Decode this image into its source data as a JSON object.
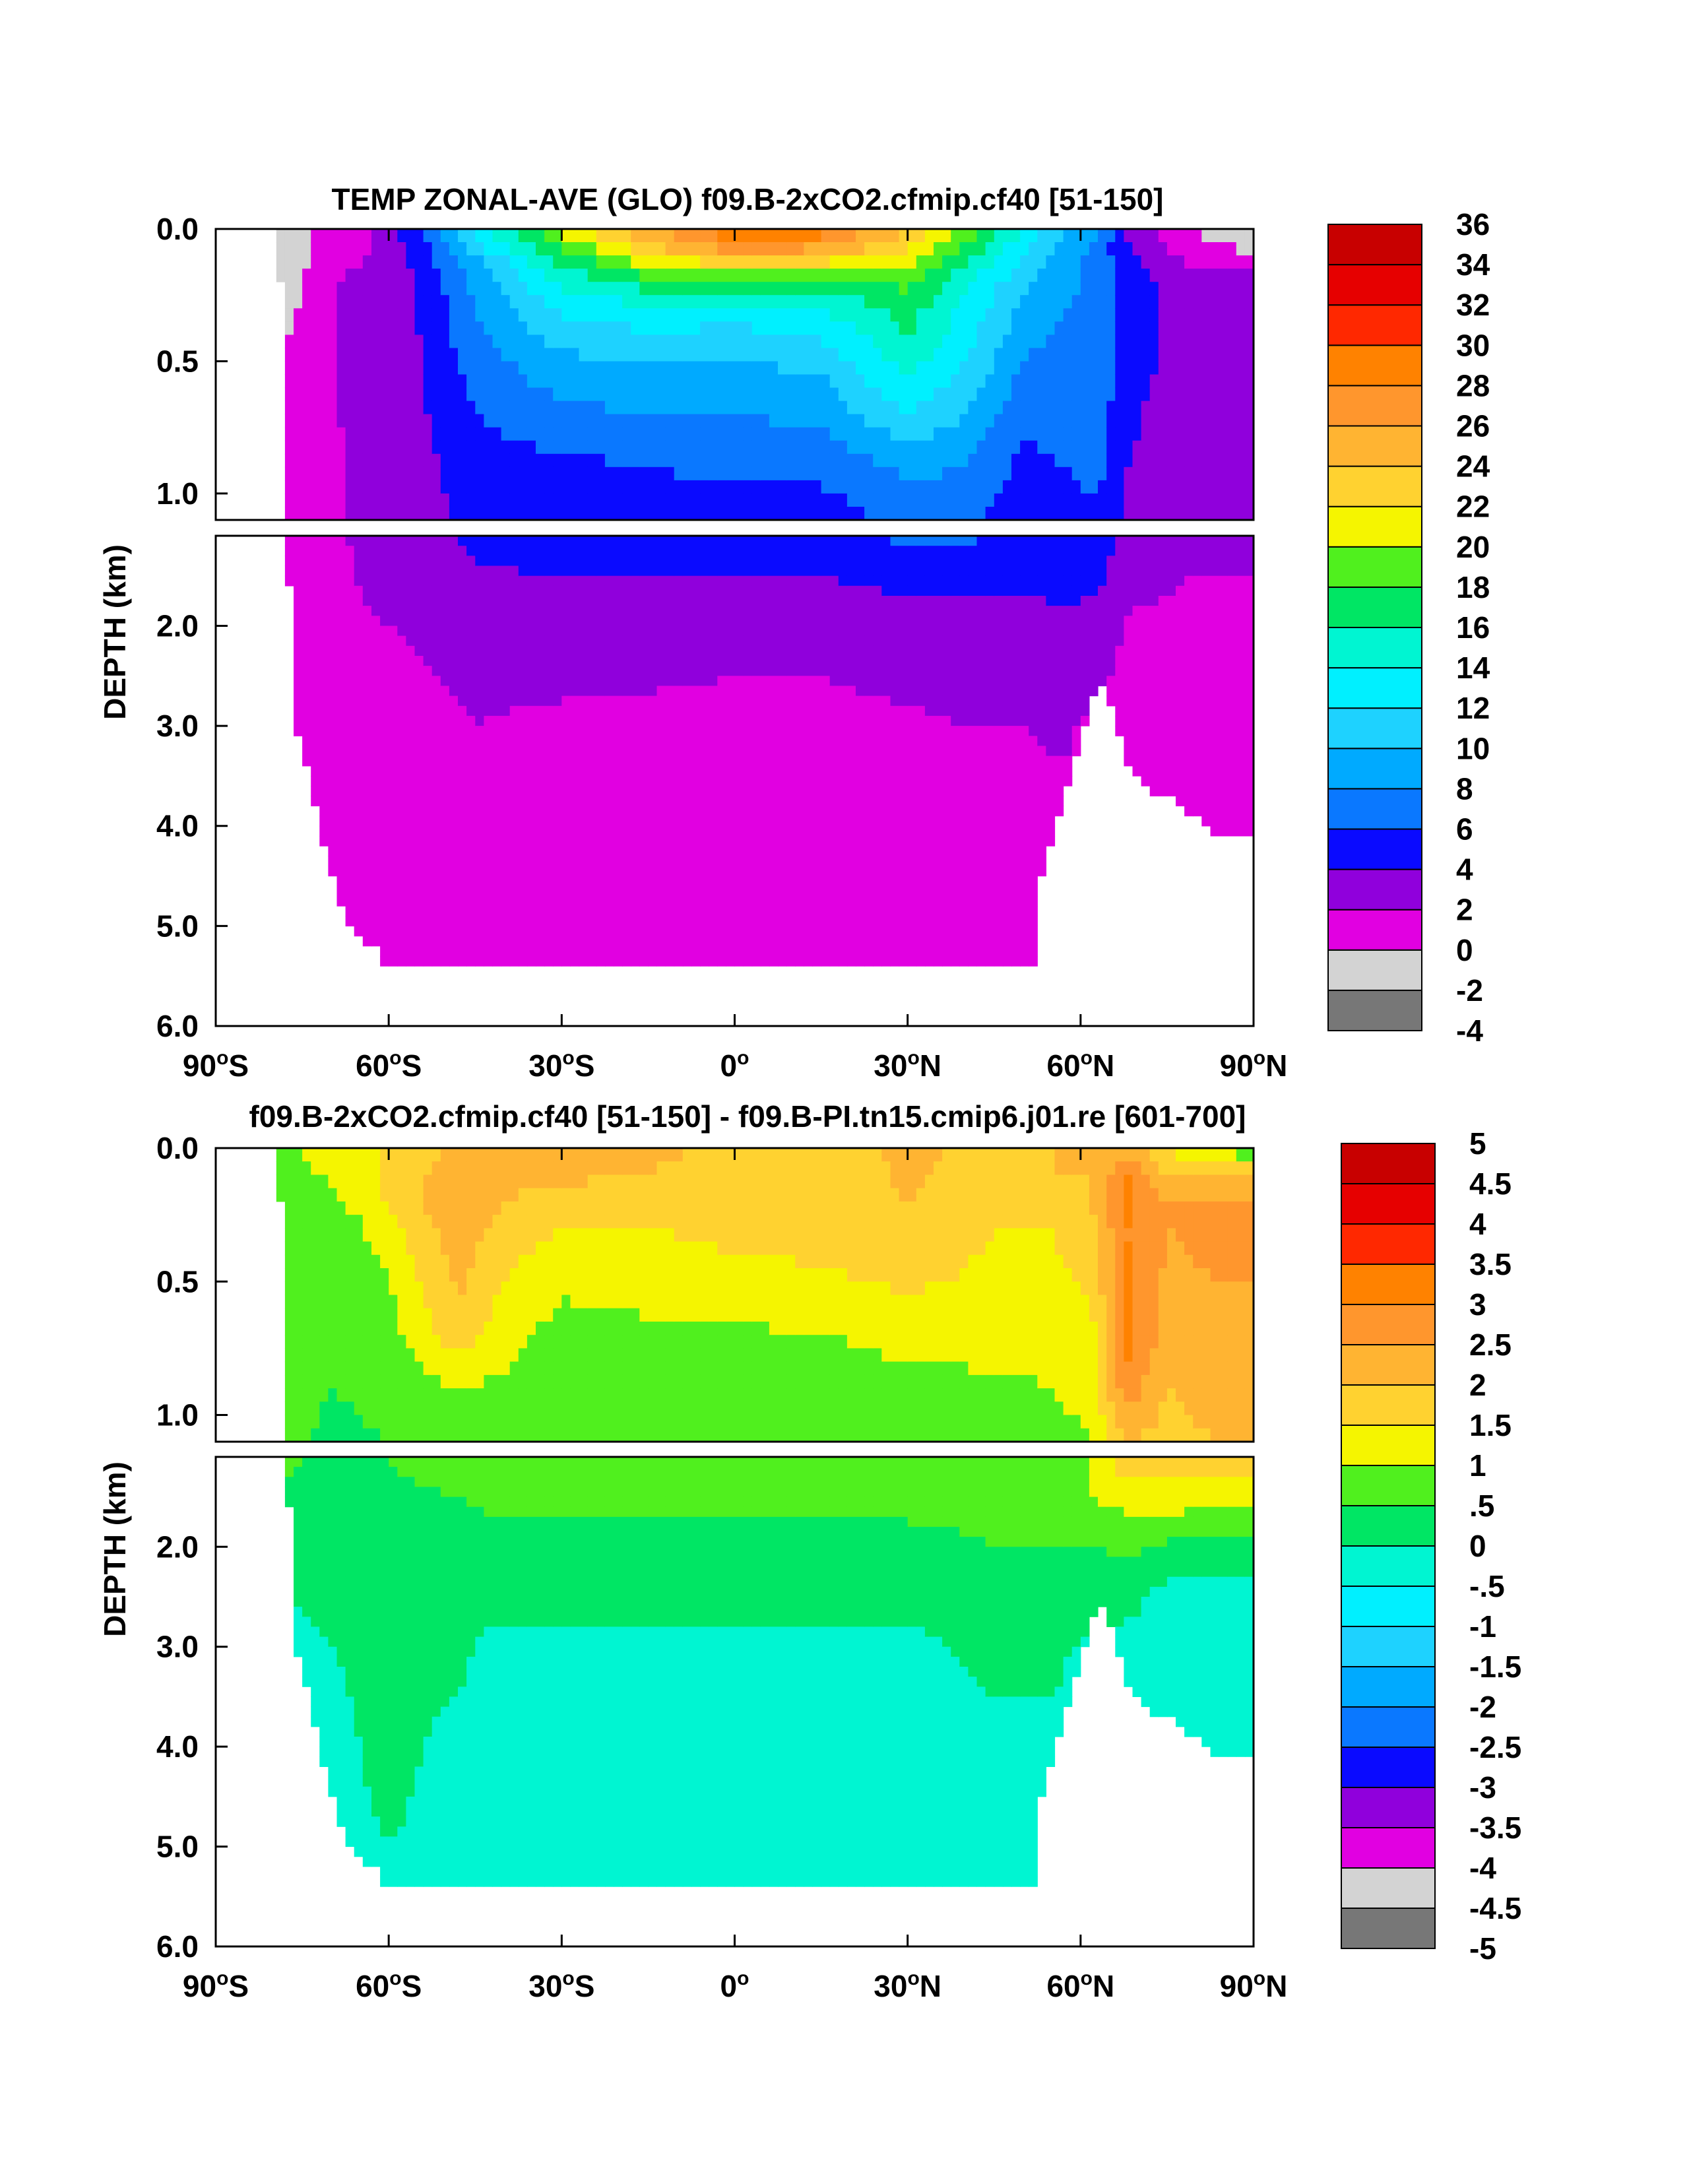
{
  "chart_data": [
    {
      "type": "heatmap",
      "title": "TEMP ZONAL-AVE (GLO) f09.B-2xCO2.cfmip.cf40 [51-150]",
      "ylabel": "DEPTH (km)",
      "xlabel": "",
      "x_ticks": [
        "90°S",
        "60°S",
        "30°S",
        "0°",
        "30°N",
        "60°N",
        "90°N"
      ],
      "y_ticks_upper": [
        "0.0",
        "0.5",
        "1.0"
      ],
      "y_ticks_lower": [
        "2.0",
        "3.0",
        "4.0",
        "5.0",
        "6.0"
      ],
      "xlim": [
        -90,
        90
      ],
      "ylim_km": [
        6.0,
        0.0
      ],
      "levels": [
        -4,
        -2,
        0,
        2,
        4,
        6,
        8,
        10,
        12,
        14,
        16,
        18,
        20,
        22,
        24,
        26,
        28,
        30,
        32,
        34,
        36
      ],
      "colorbar_labels": [
        "36",
        "34",
        "32",
        "30",
        "28",
        "26",
        "24",
        "22",
        "20",
        "18",
        "16",
        "14",
        "12",
        "10",
        "8",
        "6",
        "4",
        "2",
        "0",
        "-2",
        "-4"
      ],
      "colors": [
        "#777777",
        "#d3d3d3",
        "#e100e1",
        "#9000dc",
        "#0a0aff",
        "#0a78ff",
        "#00aaff",
        "#1ed2ff",
        "#00f0ff",
        "#00f5d2",
        "#00e664",
        "#50f01e",
        "#f5f500",
        "#ffd230",
        "#ffb432",
        "#ff962d",
        "#ff8200",
        "#ff2800",
        "#e60000",
        "#c80000"
      ],
      "profile_depths_km": [
        0.0,
        0.05,
        0.1,
        0.2,
        0.3,
        0.5,
        0.7,
        0.9,
        1.1,
        1.5,
        2.0,
        2.5,
        3.0,
        4.0,
        5.0,
        5.5
      ],
      "profiles": [
        {
          "lat": -78,
          "temps": [
            -1.5,
            -1.6,
            -1.8,
            -1.8,
            -1.0,
            0.5,
            1.0,
            1.0,
            1.0,
            1.0,
            0.9,
            0.8,
            0.8,
            0.8,
            0.7,
            0.7
          ]
        },
        {
          "lat": -72,
          "temps": [
            0.5,
            0.3,
            0.5,
            1.5,
            1.5,
            1.5,
            1.5,
            1.3,
            1.2,
            1.1,
            1.0,
            0.9,
            0.8,
            0.8,
            0.7,
            0.7
          ]
        },
        {
          "lat": -65,
          "temps": [
            1.0,
            1.2,
            1.8,
            2.5,
            2.8,
            2.6,
            2.5,
            2.4,
            2.3,
            2.1,
            1.8,
            1.2,
            0.9,
            0.8,
            0.7,
            0.7
          ]
        },
        {
          "lat": -55,
          "temps": [
            5.5,
            5.0,
            4.5,
            4.0,
            4.0,
            3.8,
            3.6,
            3.4,
            3.2,
            2.6,
            2.2,
            1.8,
            1.2,
            0.9,
            0.8,
            0.8
          ]
        },
        {
          "lat": -45,
          "temps": [
            13.0,
            12.0,
            10.0,
            8.5,
            8.0,
            7.0,
            6.0,
            5.0,
            4.5,
            3.8,
            2.8,
            2.4,
            2.0,
            1.2,
            0.9,
            0.8
          ]
        },
        {
          "lat": -30,
          "temps": [
            20.5,
            19.0,
            17.0,
            14.5,
            12.5,
            9.5,
            7.5,
            5.5,
            4.8,
            4.0,
            3.2,
            2.4,
            1.6,
            1.2,
            1.0,
            0.9
          ]
        },
        {
          "lat": -15,
          "temps": [
            25.0,
            24.5,
            22.0,
            17.0,
            13.5,
            10.0,
            8.0,
            6.0,
            5.0,
            4.0,
            3.0,
            2.2,
            1.6,
            1.2,
            1.0,
            0.9
          ]
        },
        {
          "lat": 0,
          "temps": [
            29.5,
            28.5,
            25.0,
            17.0,
            13.0,
            10.0,
            8.0,
            6.5,
            5.0,
            4.0,
            3.0,
            2.0,
            1.6,
            1.2,
            1.0,
            0.9
          ]
        },
        {
          "lat": 15,
          "temps": [
            28.5,
            27.5,
            24.0,
            17.0,
            14.0,
            10.5,
            8.5,
            6.5,
            5.0,
            4.0,
            3.0,
            2.0,
            1.6,
            1.2,
            1.0,
            0.9
          ]
        },
        {
          "lat": 30,
          "temps": [
            24.0,
            23.0,
            21.0,
            18.5,
            17.0,
            15.0,
            12.0,
            8.5,
            6.5,
            4.5,
            3.2,
            2.4,
            1.7,
            1.2,
            1.0,
            0.9
          ]
        },
        {
          "lat": 40,
          "temps": [
            20.0,
            18.5,
            17.0,
            14.5,
            13.5,
            12.0,
            10.0,
            8.0,
            6.5,
            4.5,
            3.5,
            2.6,
            2.0,
            1.3,
            1.0,
            0.9
          ]
        },
        {
          "lat": 50,
          "temps": [
            14.0,
            13.0,
            12.0,
            10.5,
            9.5,
            8.0,
            6.5,
            5.5,
            4.8,
            4.2,
            3.5,
            2.8,
            2.0,
            1.2,
            1.0,
            0.9
          ]
        },
        {
          "lat": 57,
          "temps": [
            10.0,
            9.5,
            9.0,
            8.5,
            8.0,
            7.0,
            6.5,
            6.0,
            5.5,
            4.5,
            3.8,
            3.2,
            2.3,
            1.5,
            1.2,
            1.0
          ]
        },
        {
          "lat": 63,
          "temps": [
            8.0,
            7.5,
            7.0,
            7.5,
            7.5,
            7.5,
            7.0,
            6.5,
            5.5,
            4.5,
            3.2,
            2.5,
            1.5,
            1.2,
            1.0,
            1.0
          ]
        },
        {
          "lat": 68,
          "temps": [
            4.0,
            4.0,
            4.5,
            5.0,
            5.0,
            5.0,
            4.5,
            4.0,
            3.5,
            2.5,
            1.8,
            1.5,
            1.2,
            1.0,
            1.0,
            1.0
          ]
        },
        {
          "lat": 78,
          "temps": [
            0.5,
            0.5,
            1.5,
            3.0,
            3.0,
            3.0,
            2.8,
            2.5,
            2.3,
            2.0,
            1.8,
            1.5,
            1.2,
            1.0,
            1.0,
            1.0
          ]
        },
        {
          "lat": 90,
          "temps": [
            -1.5,
            -1.0,
            0.5,
            2.8,
            3.0,
            3.0,
            2.8,
            2.5,
            2.3,
            2.0,
            1.8,
            1.5,
            1.2,
            1.0,
            1.0,
            1.0
          ]
        }
      ],
      "bottom_depth_km": [
        {
          "lat": -90,
          "depth": 0.0
        },
        {
          "lat": -79,
          "depth": 0.0
        },
        {
          "lat": -78,
          "depth": 0.8
        },
        {
          "lat": -76,
          "depth": 3.0
        },
        {
          "lat": -74,
          "depth": 3.5
        },
        {
          "lat": -72,
          "depth": 4.0
        },
        {
          "lat": -70,
          "depth": 4.5
        },
        {
          "lat": -67,
          "depth": 5.0
        },
        {
          "lat": -63,
          "depth": 5.2
        },
        {
          "lat": -60,
          "depth": 5.4
        },
        {
          "lat": -40,
          "depth": 5.4
        },
        {
          "lat": 0,
          "depth": 5.4
        },
        {
          "lat": 52,
          "depth": 5.4
        },
        {
          "lat": 53,
          "depth": 4.5
        },
        {
          "lat": 56,
          "depth": 4.0
        },
        {
          "lat": 58,
          "depth": 3.5
        },
        {
          "lat": 60,
          "depth": 3.2
        },
        {
          "lat": 62,
          "depth": 2.7
        },
        {
          "lat": 64,
          "depth": 2.6
        },
        {
          "lat": 66,
          "depth": 3.0
        },
        {
          "lat": 68,
          "depth": 3.4
        },
        {
          "lat": 73,
          "depth": 3.7
        },
        {
          "lat": 76,
          "depth": 3.7
        },
        {
          "lat": 83,
          "depth": 4.1
        },
        {
          "lat": 90,
          "depth": 4.1
        }
      ]
    },
    {
      "type": "heatmap",
      "title": "f09.B-2xCO2.cfmip.cf40 [51-150] - f09.B-PI.tn15.cmip6.j01.re [601-700]",
      "ylabel": "DEPTH (km)",
      "xlabel": "",
      "x_ticks": [
        "90°S",
        "60°S",
        "30°S",
        "0°",
        "30°N",
        "60°N",
        "90°N"
      ],
      "y_ticks_upper": [
        "0.0",
        "0.5",
        "1.0"
      ],
      "y_ticks_lower": [
        "2.0",
        "3.0",
        "4.0",
        "5.0",
        "6.0"
      ],
      "xlim": [
        -90,
        90
      ],
      "ylim_km": [
        6.0,
        0.0
      ],
      "levels": [
        -5,
        -4.5,
        -4,
        -3.5,
        -3,
        -2.5,
        -2,
        -1.5,
        -1,
        -0.5,
        0,
        0.5,
        1,
        1.5,
        2,
        2.5,
        3,
        3.5,
        4,
        4.5,
        5
      ],
      "colorbar_labels": [
        "5",
        "4.5",
        "4",
        "3.5",
        "3",
        "2.5",
        "2",
        "1.5",
        "1",
        ".5",
        "0",
        "-.5",
        "-1",
        "-1.5",
        "-2",
        "-2.5",
        "-3",
        "-3.5",
        "-4",
        "-4.5",
        "-5"
      ],
      "colors": [
        "#777777",
        "#d3d3d3",
        "#e100e1",
        "#9000dc",
        "#0a0aff",
        "#0a78ff",
        "#00aaff",
        "#1ed2ff",
        "#00f0ff",
        "#00f5d2",
        "#00e664",
        "#50f01e",
        "#f5f500",
        "#ffd230",
        "#ffb432",
        "#ff962d",
        "#ff8200",
        "#ff2800",
        "#e60000",
        "#c80000"
      ],
      "profile_depths_km": [
        0.0,
        0.05,
        0.1,
        0.2,
        0.3,
        0.5,
        0.7,
        0.9,
        1.1,
        1.5,
        2.0,
        2.5,
        3.0,
        4.0,
        5.0,
        5.5
      ],
      "profiles": [
        {
          "lat": -78,
          "temps": [
            0.8,
            0.8,
            0.7,
            0.7,
            0.6,
            0.6,
            0.8,
            0.7,
            0.6,
            0.4,
            0.2,
            0.0,
            -0.1,
            -0.2,
            -0.3,
            -0.3
          ]
        },
        {
          "lat": -70,
          "temps": [
            1.3,
            1.2,
            1.1,
            0.8,
            0.6,
            0.5,
            0.5,
            0.5,
            0.4,
            0.4,
            0.3,
            0.1,
            0.0,
            -0.1,
            -0.1,
            -0.2
          ]
        },
        {
          "lat": -60,
          "temps": [
            1.5,
            1.6,
            1.6,
            1.6,
            1.3,
            1.0,
            0.8,
            0.6,
            0.5,
            0.4,
            0.4,
            0.2,
            0.1,
            0.1,
            0.0,
            0.0
          ]
        },
        {
          "lat": -48,
          "temps": [
            2.1,
            2.2,
            2.3,
            2.4,
            2.3,
            2.1,
            1.8,
            1.0,
            0.8,
            0.5,
            0.3,
            0.2,
            0.1,
            -0.1,
            -0.1,
            -0.2
          ]
        },
        {
          "lat": -40,
          "temps": [
            2.2,
            2.2,
            2.2,
            2.0,
            1.8,
            1.5,
            1.2,
            0.9,
            0.7,
            0.6,
            0.4,
            0.2,
            -0.2,
            -0.2,
            -0.2,
            -0.2
          ]
        },
        {
          "lat": -30,
          "temps": [
            2.2,
            2.1,
            2.1,
            1.8,
            1.5,
            1.1,
            0.8,
            0.7,
            0.6,
            0.6,
            0.4,
            0.1,
            -0.1,
            -0.2,
            -0.2,
            -0.2
          ]
        },
        {
          "lat": -15,
          "temps": [
            2.2,
            2.1,
            2.0,
            1.8,
            1.5,
            1.2,
            0.9,
            0.7,
            0.6,
            0.6,
            0.4,
            0.1,
            -0.1,
            -0.2,
            -0.2,
            -0.2
          ]
        },
        {
          "lat": 0,
          "temps": [
            1.8,
            1.7,
            1.6,
            1.6,
            1.6,
            1.4,
            0.9,
            0.8,
            0.6,
            0.6,
            0.4,
            0.1,
            -0.1,
            -0.2,
            -0.2,
            -0.2
          ]
        },
        {
          "lat": 15,
          "temps": [
            1.6,
            1.6,
            1.7,
            1.8,
            1.7,
            1.4,
            1.0,
            0.8,
            0.6,
            0.6,
            0.4,
            0.1,
            -0.1,
            -0.2,
            -0.2,
            -0.2
          ]
        },
        {
          "lat": 30,
          "temps": [
            2.2,
            2.1,
            2.1,
            2.0,
            1.8,
            1.6,
            1.1,
            0.9,
            0.7,
            0.6,
            0.4,
            0.1,
            -0.1,
            -0.2,
            -0.2,
            -0.2
          ]
        },
        {
          "lat": 45,
          "temps": [
            1.8,
            1.8,
            1.8,
            1.6,
            1.5,
            1.4,
            1.2,
            0.9,
            0.8,
            0.6,
            0.5,
            0.3,
            0.1,
            -0.1,
            -0.2,
            -0.2
          ]
        },
        {
          "lat": 55,
          "temps": [
            2.0,
            2.0,
            2.0,
            1.7,
            1.5,
            1.4,
            1.2,
            1.0,
            0.8,
            0.6,
            0.5,
            0.3,
            0.1,
            -0.1,
            -0.2,
            -0.2
          ]
        },
        {
          "lat": 62,
          "temps": [
            2.0,
            2.0,
            2.0,
            2.0,
            1.8,
            1.6,
            1.4,
            1.2,
            1.0,
            1.0,
            0.5,
            0.2,
            -0.1,
            -0.2,
            -0.2,
            -0.2
          ]
        },
        {
          "lat": 68,
          "temps": [
            2.3,
            2.5,
            3.0,
            3.2,
            3.0,
            3.1,
            3.2,
            2.8,
            2.0,
            1.2,
            0.6,
            0.2,
            -0.2,
            -0.3,
            -0.3,
            -0.3
          ]
        },
        {
          "lat": 75,
          "temps": [
            1.4,
            1.8,
            2.0,
            2.5,
            2.5,
            2.4,
            2.3,
            2.0,
            1.8,
            1.3,
            0.4,
            -0.2,
            -0.3,
            -0.3,
            -0.3,
            -0.3
          ]
        },
        {
          "lat": 83,
          "temps": [
            0.8,
            1.6,
            2.2,
            2.6,
            2.6,
            2.5,
            2.4,
            2.2,
            2.0,
            1.2,
            0.3,
            -0.2,
            -0.3,
            -0.3,
            -0.3,
            -0.3
          ]
        },
        {
          "lat": 90,
          "temps": [
            0.4,
            1.4,
            2.2,
            2.5,
            2.5,
            2.5,
            2.4,
            2.2,
            2.0,
            1.1,
            0.3,
            -0.2,
            -0.3,
            -0.3,
            -0.3,
            -0.3
          ]
        }
      ],
      "bottom_depth_km": [
        {
          "lat": -90,
          "depth": 0.0
        },
        {
          "lat": -79,
          "depth": 0.0
        },
        {
          "lat": -78,
          "depth": 0.8
        },
        {
          "lat": -76,
          "depth": 3.0
        },
        {
          "lat": -74,
          "depth": 3.5
        },
        {
          "lat": -72,
          "depth": 4.0
        },
        {
          "lat": -70,
          "depth": 4.5
        },
        {
          "lat": -67,
          "depth": 5.0
        },
        {
          "lat": -63,
          "depth": 5.2
        },
        {
          "lat": -60,
          "depth": 5.4
        },
        {
          "lat": -40,
          "depth": 5.4
        },
        {
          "lat": 0,
          "depth": 5.4
        },
        {
          "lat": 52,
          "depth": 5.4
        },
        {
          "lat": 53,
          "depth": 4.5
        },
        {
          "lat": 56,
          "depth": 4.0
        },
        {
          "lat": 58,
          "depth": 3.5
        },
        {
          "lat": 60,
          "depth": 3.2
        },
        {
          "lat": 62,
          "depth": 2.7
        },
        {
          "lat": 64,
          "depth": 2.6
        },
        {
          "lat": 66,
          "depth": 3.0
        },
        {
          "lat": 68,
          "depth": 3.4
        },
        {
          "lat": 73,
          "depth": 3.7
        },
        {
          "lat": 76,
          "depth": 3.7
        },
        {
          "lat": 83,
          "depth": 4.1
        },
        {
          "lat": 90,
          "depth": 4.1
        }
      ]
    }
  ]
}
